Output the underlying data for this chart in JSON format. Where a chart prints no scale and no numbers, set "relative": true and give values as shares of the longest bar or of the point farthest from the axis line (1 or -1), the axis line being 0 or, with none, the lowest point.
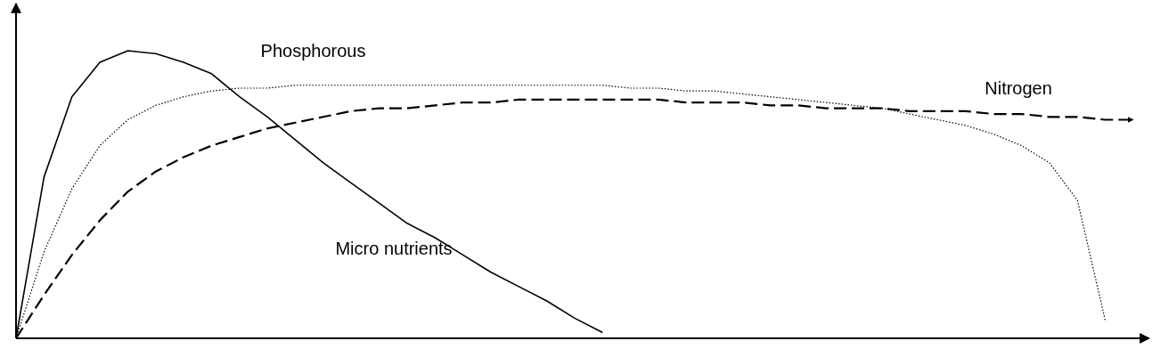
{
  "chart_data": {
    "type": "line",
    "relative": true,
    "marker": "none",
    "categories": [
      null,
      null,
      null,
      null,
      null,
      null,
      null,
      null,
      null,
      null,
      null,
      null,
      null,
      null,
      null,
      null,
      null,
      null,
      null,
      null,
      null,
      null,
      null,
      null,
      null,
      null,
      null,
      null,
      null,
      null,
      null,
      null,
      null,
      null,
      null,
      null,
      null,
      null,
      null,
      null,
      null
    ],
    "series": [
      {
        "name": "Micro nutrients",
        "color": "#000000",
        "line_style": "solid",
        "values": [
          0,
          0.56,
          0.84,
          0.96,
          1,
          0.99,
          0.96,
          0.92,
          0.84,
          0.77,
          0.69,
          0.61,
          0.54,
          0.47,
          0.4,
          0.35,
          0.29,
          0.23,
          0.18,
          0.13,
          0.07,
          0.02,
          null,
          null,
          null,
          null,
          null,
          null,
          null,
          null,
          null,
          null,
          null,
          null,
          null,
          null,
          null,
          null,
          null,
          null,
          null
        ]
      },
      {
        "name": "Phosphorous",
        "color": "#000000",
        "line_style": "dotted",
        "values": [
          0,
          0.3,
          0.52,
          0.67,
          0.76,
          0.81,
          0.84,
          0.86,
          0.87,
          0.87,
          0.88,
          0.88,
          0.88,
          0.88,
          0.88,
          0.88,
          0.88,
          0.88,
          0.88,
          0.88,
          0.88,
          0.88,
          0.87,
          0.87,
          0.86,
          0.86,
          0.85,
          0.84,
          0.83,
          0.82,
          0.81,
          0.8,
          0.78,
          0.76,
          0.74,
          0.71,
          0.67,
          0.61,
          0.48,
          0.06,
          null
        ]
      },
      {
        "name": "Nitrogen",
        "color": "#000000",
        "line_style": "dashed",
        "values": [
          0,
          0.15,
          0.29,
          0.41,
          0.51,
          0.58,
          0.63,
          0.67,
          0.7,
          0.73,
          0.75,
          0.77,
          0.79,
          0.8,
          0.8,
          0.81,
          0.82,
          0.82,
          0.83,
          0.83,
          0.83,
          0.83,
          0.83,
          0.83,
          0.82,
          0.82,
          0.82,
          0.81,
          0.81,
          0.8,
          0.8,
          0.8,
          0.79,
          0.79,
          0.79,
          0.78,
          0.78,
          0.77,
          0.77,
          0.76,
          0.76
        ]
      }
    ]
  }
}
